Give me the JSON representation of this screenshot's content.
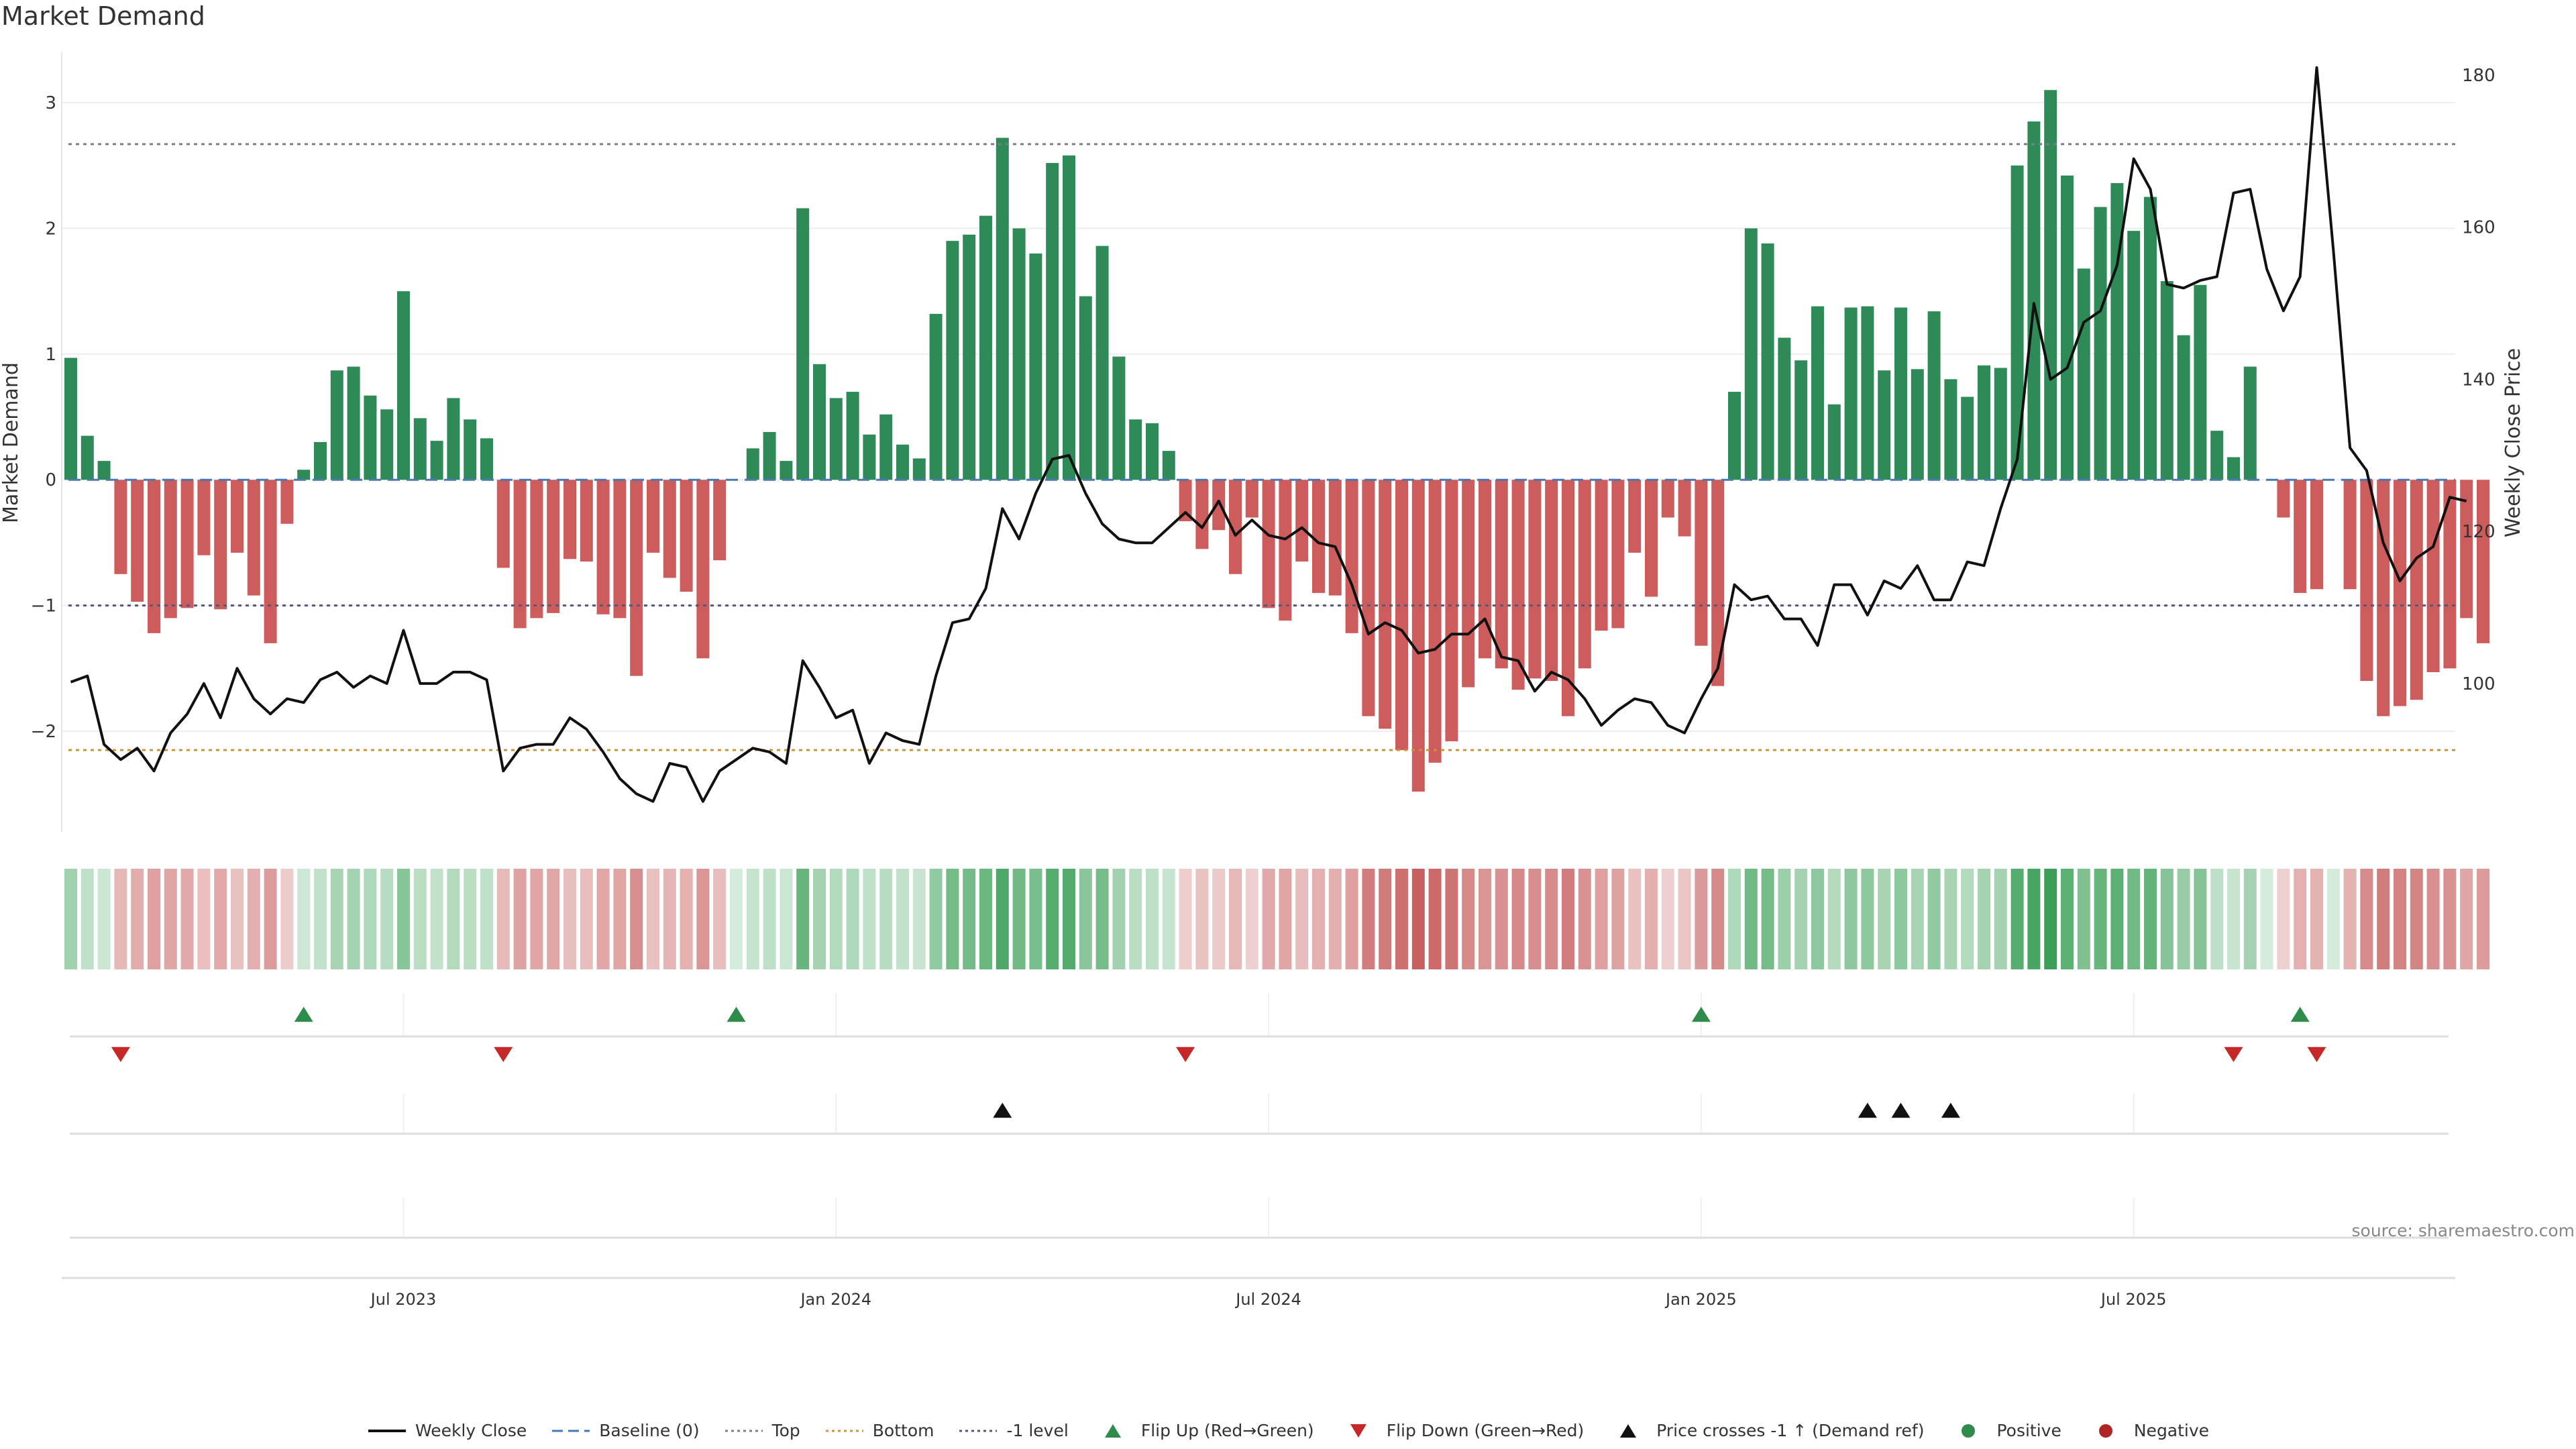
{
  "chart_data": {
    "type": "bar",
    "title": "Market Demand",
    "source": "source: sharemaestro.com",
    "y_left_label": "Market Demand",
    "y_right_label": "Weekly Close Price",
    "y_left_ticks": [
      "−2",
      "−1",
      "0",
      "1",
      "2",
      "3"
    ],
    "y_left_tick_values": [
      -2,
      -1,
      0,
      1,
      2,
      3
    ],
    "y_left_range": [
      -2.8,
      3.4
    ],
    "y_right_ticks": [
      "100",
      "120",
      "140",
      "160",
      "180"
    ],
    "y_right_tick_values": [
      100,
      120,
      140,
      160,
      180
    ],
    "y_right_range": [
      80.5,
      183
    ],
    "x_ticks": [
      "Jul 2023",
      "Jan 2024",
      "Jul 2024",
      "Jan 2025",
      "Jul 2025"
    ],
    "x_tick_index": [
      20,
      46,
      72,
      98,
      124
    ],
    "reference_lines": {
      "top": 2.67,
      "minus_one": -1,
      "bottom": -2.15,
      "baseline": 0
    },
    "demand": [
      0.97,
      0.35,
      0.15,
      -0.75,
      -0.97,
      -1.22,
      -1.1,
      -1.02,
      -0.6,
      -1.03,
      -0.58,
      -0.92,
      -1.3,
      -0.35,
      0.08,
      0.3,
      0.87,
      0.9,
      0.67,
      0.56,
      1.5,
      0.49,
      0.31,
      0.65,
      0.48,
      0.33,
      -0.7,
      -1.18,
      -1.1,
      -1.06,
      -0.63,
      -0.65,
      -1.07,
      -1.1,
      -1.56,
      -0.58,
      -0.78,
      -0.89,
      -1.42,
      -0.64,
      0,
      0.25,
      0.38,
      0.15,
      2.16,
      0.92,
      0.65,
      0.7,
      0.36,
      0.52,
      0.28,
      0.17,
      1.32,
      1.9,
      1.95,
      2.1,
      2.72,
      2.0,
      1.8,
      2.52,
      2.58,
      1.46,
      1.86,
      0.98,
      0.48,
      0.45,
      0.23,
      -0.33,
      -0.55,
      -0.4,
      -0.75,
      -0.3,
      -1.02,
      -1.12,
      -0.65,
      -0.9,
      -0.92,
      -1.22,
      -1.88,
      -1.98,
      -2.15,
      -2.48,
      -2.25,
      -2.08,
      -1.65,
      -1.42,
      -1.5,
      -1.67,
      -1.58,
      -1.6,
      -1.88,
      -1.5,
      -1.2,
      -1.18,
      -0.58,
      -0.93,
      -0.3,
      -0.45,
      -1.32,
      -1.64,
      0.7,
      2.0,
      1.88,
      1.13,
      0.95,
      1.38,
      0.6,
      1.37,
      1.38,
      0.87,
      1.37,
      0.88,
      1.34,
      0.8,
      0.66,
      0.91,
      0.89,
      2.5,
      2.85,
      3.1,
      2.42,
      1.68,
      2.17,
      2.36,
      1.98,
      2.25,
      1.58,
      1.15,
      1.55,
      0.39,
      0.18,
      0.9,
      0,
      -0.3,
      -0.9,
      -0.87,
      0,
      -0.87,
      -1.6,
      -1.88,
      -1.8,
      -1.75,
      -1.53,
      -1.5,
      -1.1,
      -1.3
    ],
    "price": [
      100.2,
      101.0,
      92.0,
      90.0,
      91.5,
      88.5,
      93.5,
      96.0,
      100.0,
      95.5,
      102.0,
      98.0,
      96.0,
      98.0,
      97.5,
      100.5,
      101.5,
      99.5,
      101.0,
      100.0,
      107.0,
      100.0,
      100.0,
      101.5,
      101.5,
      100.5,
      88.5,
      91.5,
      92.0,
      92.0,
      95.5,
      94.0,
      91.0,
      87.5,
      85.5,
      84.5,
      89.5,
      89.0,
      84.5,
      88.5,
      90.0,
      91.5,
      91.0,
      89.5,
      103.0,
      99.5,
      95.5,
      96.5,
      89.5,
      93.5,
      92.5,
      92.0,
      101.0,
      108.0,
      108.5,
      112.5,
      123.0,
      119.0,
      125.0,
      129.5,
      130.0,
      125.0,
      121.0,
      119.0,
      118.5,
      118.5,
      120.5,
      122.5,
      120.5,
      124.0,
      119.5,
      121.5,
      119.5,
      119.0,
      120.5,
      118.5,
      118.0,
      113.0,
      106.5,
      108.0,
      107.0,
      104.0,
      104.5,
      106.5,
      106.5,
      108.5,
      103.5,
      103.0,
      99.0,
      101.5,
      100.5,
      98.0,
      94.5,
      96.5,
      98.0,
      97.5,
      94.5,
      93.5,
      98.0,
      102.0,
      113.0,
      111.0,
      111.5,
      108.5,
      108.5,
      105.0,
      113.0,
      113.0,
      109.0,
      113.5,
      112.5,
      115.5,
      111.0,
      111.0,
      116.0,
      115.5,
      123.0,
      129.5,
      150.0,
      140.0,
      141.5,
      147.5,
      149.0,
      155.0,
      169.0,
      165.0,
      152.5,
      152.0,
      153.0,
      153.5,
      164.5,
      165.0,
      154.5,
      149.0,
      153.5,
      181.0,
      157.0,
      131.0,
      128.0,
      118.5,
      113.5,
      116.5,
      118.0,
      124.5,
      124.0
    ],
    "heat_strip": "Market demand intensity by week (green = positive, red = negative)",
    "flip_up_index": [
      14,
      40,
      98,
      134
    ],
    "flip_down_index": [
      3,
      26,
      67,
      130,
      135
    ],
    "price_cross_index": [
      56,
      108,
      110,
      113
    ],
    "legend": [
      {
        "label": "Weekly Close",
        "symbol": "line-solid",
        "color": "#111111"
      },
      {
        "label": "Baseline (0)",
        "symbol": "line-dash",
        "color": "#4a78b4"
      },
      {
        "label": "Top",
        "symbol": "line-dot",
        "color": "#7d7d8a"
      },
      {
        "label": "Bottom",
        "symbol": "line-dot",
        "color": "#c9953a"
      },
      {
        "label": "-1 level",
        "symbol": "line-dot",
        "color": "#55577a"
      },
      {
        "label": "Flip Up (Red→Green)",
        "symbol": "tri-up",
        "color": "#2e8b4a"
      },
      {
        "label": "Flip Down (Green→Red)",
        "symbol": "tri-down",
        "color": "#c62828"
      },
      {
        "label": "Price crosses -1 ↑ (Demand ref)",
        "symbol": "tri-up",
        "color": "#111111"
      },
      {
        "label": "Positive",
        "symbol": "dot",
        "color": "#2e8b4a"
      },
      {
        "label": "Negative",
        "symbol": "dot",
        "color": "#b02424"
      }
    ],
    "colors": {
      "positive": "#2e8b57",
      "negative": "#cd5c5c",
      "line": "#111111"
    }
  }
}
